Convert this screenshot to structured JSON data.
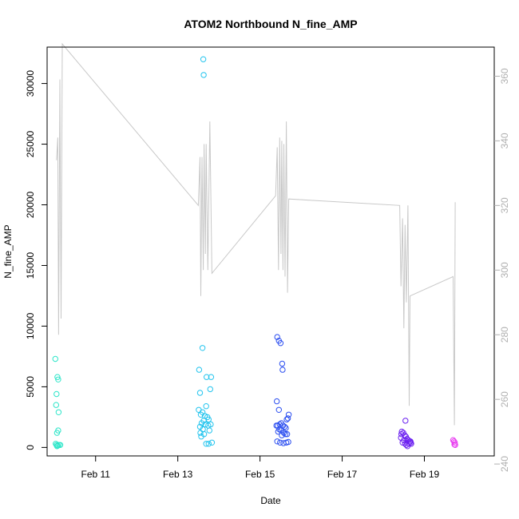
{
  "chart_data": {
    "type": "scatter",
    "title": "ATOM2 Northbound N_fine_AMP",
    "xlabel": "Date",
    "ylabel": "N_fine_AMP",
    "xlim": [
      9.82,
      20.7
    ],
    "ylim": [
      -700,
      33000
    ],
    "y2lim": [
      242.5,
      369
    ],
    "x_ticks": [
      {
        "value": 11,
        "label": "Feb 11"
      },
      {
        "value": 13,
        "label": "Feb 13"
      },
      {
        "value": 15,
        "label": "Feb 15"
      },
      {
        "value": 17,
        "label": "Feb 17"
      },
      {
        "value": 19,
        "label": "Feb 19"
      }
    ],
    "y_ticks": [
      {
        "value": 0,
        "label": "0"
      },
      {
        "value": 5000,
        "label": "5000"
      },
      {
        "value": 10000,
        "label": "10000"
      },
      {
        "value": 15000,
        "label": "15000"
      },
      {
        "value": 20000,
        "label": "20000"
      },
      {
        "value": 25000,
        "label": "25000"
      },
      {
        "value": 30000,
        "label": "30000"
      }
    ],
    "y2_ticks": [
      {
        "value": 240,
        "label": "240"
      },
      {
        "value": 260,
        "label": "260"
      },
      {
        "value": 280,
        "label": "280"
      },
      {
        "value": 300,
        "label": "300"
      },
      {
        "value": 320,
        "label": "320"
      },
      {
        "value": 340,
        "label": "340"
      },
      {
        "value": 360,
        "label": "360"
      }
    ],
    "secondary_line": {
      "color": "#c8c8c8",
      "points": [
        [
          10.05,
          334
        ],
        [
          10.08,
          341
        ],
        [
          10.1,
          280
        ],
        [
          10.13,
          359
        ],
        [
          10.16,
          285
        ],
        [
          10.19,
          370
        ],
        [
          13.5,
          320
        ],
        [
          13.54,
          335
        ],
        [
          13.56,
          292
        ],
        [
          13.59,
          335
        ],
        [
          13.62,
          300
        ],
        [
          13.64,
          339
        ],
        [
          13.67,
          305
        ],
        [
          13.69,
          339
        ],
        [
          13.73,
          300
        ],
        [
          13.78,
          346
        ],
        [
          13.83,
          299
        ],
        [
          15.38,
          323
        ],
        [
          15.42,
          338
        ],
        [
          15.45,
          300
        ],
        [
          15.48,
          341
        ],
        [
          15.51,
          305
        ],
        [
          15.53,
          340
        ],
        [
          15.56,
          300
        ],
        [
          15.58,
          339
        ],
        [
          15.61,
          298
        ],
        [
          15.64,
          346
        ],
        [
          15.67,
          293
        ],
        [
          15.7,
          322
        ],
        [
          18.4,
          320
        ],
        [
          18.43,
          295
        ],
        [
          18.47,
          316
        ],
        [
          18.5,
          282
        ],
        [
          18.53,
          314
        ],
        [
          18.56,
          290
        ],
        [
          18.6,
          320
        ],
        [
          18.63,
          258
        ],
        [
          18.65,
          292
        ],
        [
          19.7,
          298
        ],
        [
          19.73,
          252
        ],
        [
          19.75,
          321
        ]
      ]
    },
    "points": [
      {
        "x": 10.02,
        "y": 7300,
        "color": "#2ee6c9"
      },
      {
        "x": 10.07,
        "y": 5800,
        "color": "#2ee6c9"
      },
      {
        "x": 10.09,
        "y": 5600,
        "color": "#2ee6c9"
      },
      {
        "x": 10.05,
        "y": 4400,
        "color": "#2ee6c9"
      },
      {
        "x": 10.04,
        "y": 3500,
        "color": "#2ee6c9"
      },
      {
        "x": 10.1,
        "y": 2900,
        "color": "#2ee6c9"
      },
      {
        "x": 10.09,
        "y": 1400,
        "color": "#2ee6c9"
      },
      {
        "x": 10.06,
        "y": 1200,
        "color": "#2ee6c9"
      },
      {
        "x": 10.03,
        "y": 300,
        "color": "#2ee6c9"
      },
      {
        "x": 10.05,
        "y": 200,
        "color": "#2ee6c9"
      },
      {
        "x": 10.08,
        "y": 150,
        "color": "#2ee6c9"
      },
      {
        "x": 10.11,
        "y": 200,
        "color": "#2ee6c9"
      },
      {
        "x": 10.14,
        "y": 200,
        "color": "#2ee6c9"
      },
      {
        "x": 10.06,
        "y": 100,
        "color": "#2ee6c9"
      },
      {
        "x": 13.62,
        "y": 32000,
        "color": "#22c4ee"
      },
      {
        "x": 13.63,
        "y": 30700,
        "color": "#22c4ee"
      },
      {
        "x": 13.6,
        "y": 8200,
        "color": "#22c4ee"
      },
      {
        "x": 13.52,
        "y": 6400,
        "color": "#22c4ee"
      },
      {
        "x": 13.7,
        "y": 5800,
        "color": "#22c4ee"
      },
      {
        "x": 13.81,
        "y": 5800,
        "color": "#22c4ee"
      },
      {
        "x": 13.54,
        "y": 4500,
        "color": "#22c4ee"
      },
      {
        "x": 13.79,
        "y": 4800,
        "color": "#22c4ee"
      },
      {
        "x": 13.69,
        "y": 3400,
        "color": "#22c4ee"
      },
      {
        "x": 13.51,
        "y": 3100,
        "color": "#22c4ee"
      },
      {
        "x": 13.6,
        "y": 2900,
        "color": "#22c4ee"
      },
      {
        "x": 13.56,
        "y": 2700,
        "color": "#22c4ee"
      },
      {
        "x": 13.66,
        "y": 2600,
        "color": "#22c4ee"
      },
      {
        "x": 13.72,
        "y": 2500,
        "color": "#22c4ee"
      },
      {
        "x": 13.75,
        "y": 2300,
        "color": "#22c4ee"
      },
      {
        "x": 13.63,
        "y": 2200,
        "color": "#22c4ee"
      },
      {
        "x": 13.58,
        "y": 2000,
        "color": "#22c4ee"
      },
      {
        "x": 13.8,
        "y": 1900,
        "color": "#22c4ee"
      },
      {
        "x": 13.67,
        "y": 1900,
        "color": "#22c4ee"
      },
      {
        "x": 13.74,
        "y": 1800,
        "color": "#22c4ee"
      },
      {
        "x": 13.54,
        "y": 1700,
        "color": "#22c4ee"
      },
      {
        "x": 13.61,
        "y": 1500,
        "color": "#22c4ee"
      },
      {
        "x": 13.77,
        "y": 1400,
        "color": "#22c4ee"
      },
      {
        "x": 13.55,
        "y": 1200,
        "color": "#22c4ee"
      },
      {
        "x": 13.64,
        "y": 1100,
        "color": "#22c4ee"
      },
      {
        "x": 13.57,
        "y": 900,
        "color": "#22c4ee"
      },
      {
        "x": 13.69,
        "y": 300,
        "color": "#22c4ee"
      },
      {
        "x": 13.75,
        "y": 300,
        "color": "#22c4ee"
      },
      {
        "x": 13.83,
        "y": 400,
        "color": "#22c4ee"
      },
      {
        "x": 15.42,
        "y": 9100,
        "color": "#2c4ff0"
      },
      {
        "x": 15.46,
        "y": 8800,
        "color": "#2c4ff0"
      },
      {
        "x": 15.5,
        "y": 8600,
        "color": "#2c4ff0"
      },
      {
        "x": 15.54,
        "y": 6900,
        "color": "#2c4ff0"
      },
      {
        "x": 15.55,
        "y": 6400,
        "color": "#2c4ff0"
      },
      {
        "x": 15.41,
        "y": 3800,
        "color": "#2c4ff0"
      },
      {
        "x": 15.46,
        "y": 3100,
        "color": "#2c4ff0"
      },
      {
        "x": 15.7,
        "y": 2700,
        "color": "#2c4ff0"
      },
      {
        "x": 15.68,
        "y": 2400,
        "color": "#2c4ff0"
      },
      {
        "x": 15.65,
        "y": 2300,
        "color": "#2c4ff0"
      },
      {
        "x": 15.52,
        "y": 2000,
        "color": "#2c4ff0"
      },
      {
        "x": 15.48,
        "y": 1900,
        "color": "#2c4ff0"
      },
      {
        "x": 15.43,
        "y": 1800,
        "color": "#2c4ff0"
      },
      {
        "x": 15.4,
        "y": 1800,
        "color": "#2c4ff0"
      },
      {
        "x": 15.56,
        "y": 1800,
        "color": "#2c4ff0"
      },
      {
        "x": 15.6,
        "y": 1700,
        "color": "#2c4ff0"
      },
      {
        "x": 15.63,
        "y": 1600,
        "color": "#2c4ff0"
      },
      {
        "x": 15.47,
        "y": 1500,
        "color": "#2c4ff0"
      },
      {
        "x": 15.51,
        "y": 1400,
        "color": "#2c4ff0"
      },
      {
        "x": 15.44,
        "y": 1300,
        "color": "#2c4ff0"
      },
      {
        "x": 15.58,
        "y": 1200,
        "color": "#2c4ff0"
      },
      {
        "x": 15.62,
        "y": 1100,
        "color": "#2c4ff0"
      },
      {
        "x": 15.66,
        "y": 1100,
        "color": "#2c4ff0"
      },
      {
        "x": 15.53,
        "y": 1000,
        "color": "#2c4ff0"
      },
      {
        "x": 15.42,
        "y": 500,
        "color": "#2c4ff0"
      },
      {
        "x": 15.49,
        "y": 400,
        "color": "#2c4ff0"
      },
      {
        "x": 15.57,
        "y": 350,
        "color": "#2c4ff0"
      },
      {
        "x": 15.64,
        "y": 400,
        "color": "#2c4ff0"
      },
      {
        "x": 15.69,
        "y": 450,
        "color": "#2c4ff0"
      },
      {
        "x": 18.45,
        "y": 1300,
        "color": "#6a1ff0"
      },
      {
        "x": 18.49,
        "y": 1200,
        "color": "#6a1ff0"
      },
      {
        "x": 18.52,
        "y": 1000,
        "color": "#6a1ff0"
      },
      {
        "x": 18.55,
        "y": 900,
        "color": "#6a1ff0"
      },
      {
        "x": 18.44,
        "y": 1100,
        "color": "#6a1ff0"
      },
      {
        "x": 18.58,
        "y": 700,
        "color": "#6a1ff0"
      },
      {
        "x": 18.61,
        "y": 600,
        "color": "#6a1ff0"
      },
      {
        "x": 18.64,
        "y": 500,
        "color": "#6a1ff0"
      },
      {
        "x": 18.67,
        "y": 400,
        "color": "#6a1ff0"
      },
      {
        "x": 18.5,
        "y": 600,
        "color": "#6a1ff0"
      },
      {
        "x": 18.47,
        "y": 400,
        "color": "#6a1ff0"
      },
      {
        "x": 18.53,
        "y": 300,
        "color": "#6a1ff0"
      },
      {
        "x": 18.56,
        "y": 200,
        "color": "#6a1ff0"
      },
      {
        "x": 18.59,
        "y": 100,
        "color": "#6a1ff0"
      },
      {
        "x": 18.62,
        "y": 300,
        "color": "#6a1ff0"
      },
      {
        "x": 18.66,
        "y": 500,
        "color": "#6a1ff0"
      },
      {
        "x": 18.43,
        "y": 800,
        "color": "#6a1ff0"
      },
      {
        "x": 18.54,
        "y": 2200,
        "color": "#6a1ff0"
      },
      {
        "x": 18.68,
        "y": 300,
        "color": "#6a1ff0"
      },
      {
        "x": 19.7,
        "y": 600,
        "color": "#e83ef0"
      },
      {
        "x": 19.72,
        "y": 500,
        "color": "#e83ef0"
      },
      {
        "x": 19.74,
        "y": 400,
        "color": "#e83ef0"
      },
      {
        "x": 19.73,
        "y": 250,
        "color": "#e83ef0"
      },
      {
        "x": 19.75,
        "y": 200,
        "color": "#e83ef0"
      }
    ]
  }
}
